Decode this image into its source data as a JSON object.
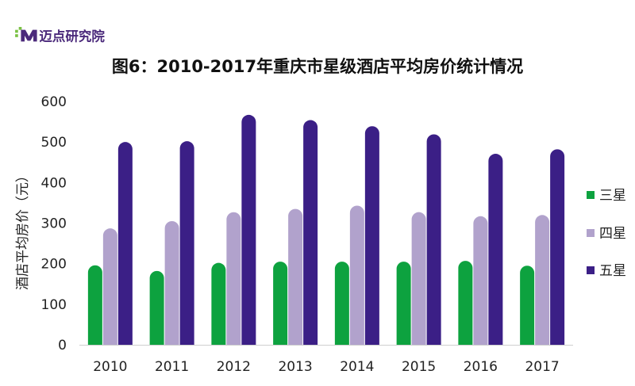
{
  "logo": {
    "text": "迈点研究院"
  },
  "chart_data": {
    "type": "bar",
    "title": "图6：2010-2017年重庆市星级酒店平均房价统计情况",
    "xlabel": "",
    "ylabel": "酒店平均房价（元）",
    "ylim": [
      0,
      600
    ],
    "yticks": [
      "0",
      "100",
      "200",
      "300",
      "400",
      "500",
      "600"
    ],
    "categories": [
      "2010",
      "2011",
      "2012",
      "2013",
      "2014",
      "2015",
      "2016",
      "2017"
    ],
    "legend_position": "right",
    "grid": false,
    "series": [
      {
        "name": "三星",
        "color": "#0da23f",
        "values": [
          196,
          182,
          202,
          205,
          205,
          205,
          207,
          195
        ]
      },
      {
        "name": "四星",
        "color": "#b1a2cc",
        "values": [
          287,
          305,
          327,
          335,
          343,
          327,
          317,
          320
        ]
      },
      {
        "name": "五星",
        "color": "#3b1f86",
        "values": [
          500,
          502,
          567,
          554,
          539,
          519,
          471,
          482
        ]
      }
    ]
  }
}
